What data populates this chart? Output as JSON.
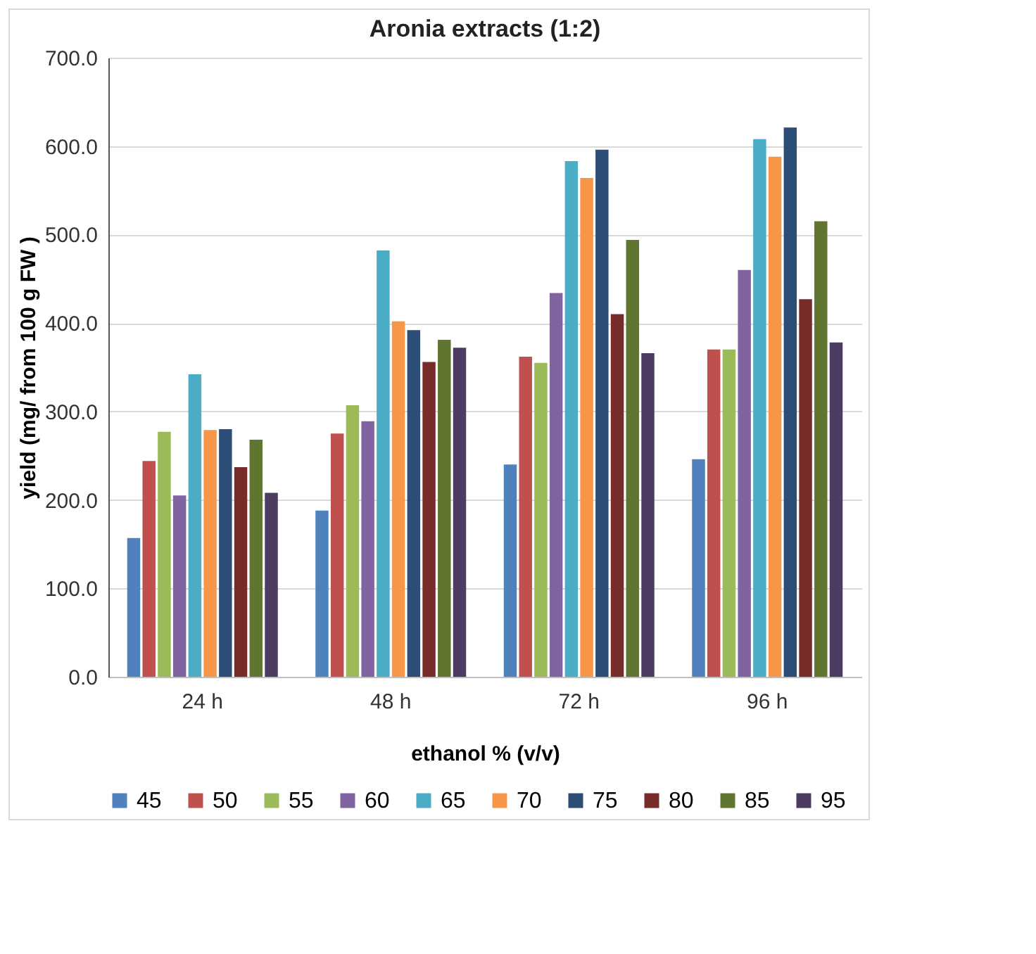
{
  "chart_data": {
    "type": "bar",
    "title": "Aronia extracts (1:2)",
    "xlabel": "ethanol % (v/v)",
    "ylabel": "yield (mg/ from 100 g FW )",
    "categories": [
      "24 h",
      "48 h",
      "72 h",
      "96 h"
    ],
    "ylim": [
      0,
      700
    ],
    "yticks": [
      {
        "value": 0,
        "label": "0.0"
      },
      {
        "value": 100,
        "label": "100.0"
      },
      {
        "value": 200,
        "label": "200.0"
      },
      {
        "value": 300,
        "label": "300.0"
      },
      {
        "value": 400,
        "label": "400.0"
      },
      {
        "value": 500,
        "label": "500.0"
      },
      {
        "value": 600,
        "label": "600.0"
      },
      {
        "value": 700,
        "label": "700.0"
      }
    ],
    "grid": "y",
    "legend": "bottom",
    "series": [
      {
        "name": "45",
        "color": "#4f81bd",
        "values": [
          157,
          188,
          240,
          246
        ]
      },
      {
        "name": "50",
        "color": "#c0504d",
        "values": [
          244,
          275,
          362,
          370
        ]
      },
      {
        "name": "55",
        "color": "#9bbb59",
        "values": [
          277,
          307,
          355,
          370
        ]
      },
      {
        "name": "60",
        "color": "#8064a2",
        "values": [
          205,
          289,
          434,
          460
        ]
      },
      {
        "name": "65",
        "color": "#4bacc6",
        "values": [
          342,
          482,
          583,
          608
        ]
      },
      {
        "name": "70",
        "color": "#f79646",
        "values": [
          279,
          402,
          564,
          588
        ]
      },
      {
        "name": "75",
        "color": "#2c4d75",
        "values": [
          280,
          392,
          596,
          621
        ]
      },
      {
        "name": "80",
        "color": "#772c2a",
        "values": [
          237,
          356,
          410,
          427
        ]
      },
      {
        "name": "85",
        "color": "#5f7530",
        "values": [
          268,
          381,
          494,
          515
        ]
      },
      {
        "name": "95",
        "color": "#4d3b62",
        "values": [
          208,
          372,
          366,
          378
        ]
      }
    ]
  }
}
